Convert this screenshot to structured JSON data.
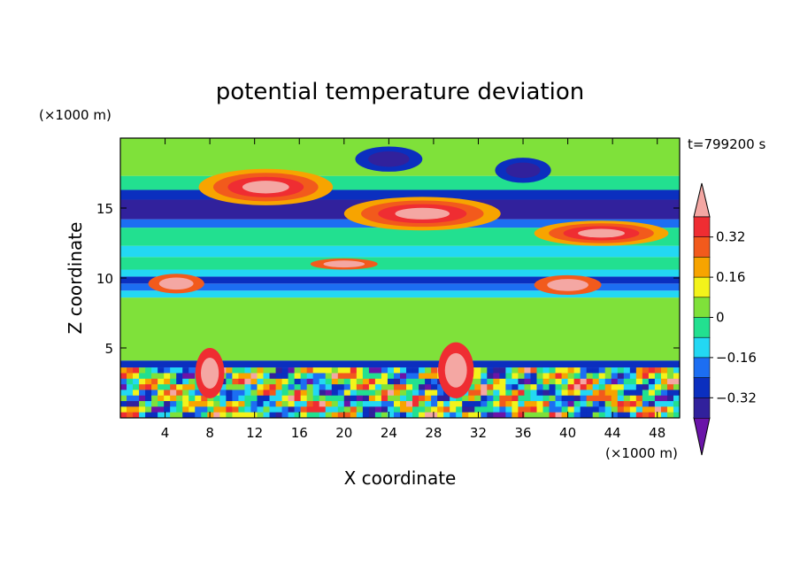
{
  "chart_data": {
    "type": "heatmap",
    "title": "potential temperature deviation",
    "xlabel": "X coordinate",
    "ylabel": "Z coordinate",
    "x_unit": "(×1000 m)",
    "y_unit": "(×1000 m)",
    "time_label": "t=799200 s",
    "xlim": [
      0,
      50
    ],
    "ylim": [
      0,
      20
    ],
    "xticks": [
      4,
      8,
      12,
      16,
      20,
      24,
      28,
      32,
      36,
      40,
      44,
      48
    ],
    "yticks": [
      5,
      10,
      15
    ],
    "colorbar": {
      "tick_labels": [
        "0.32",
        "0.16",
        "0",
        "−0.16",
        "−0.32"
      ],
      "tick_values": [
        0.32,
        0.16,
        0,
        -0.16,
        -0.32
      ],
      "levels": [
        -0.4,
        -0.32,
        -0.24,
        -0.16,
        -0.08,
        0,
        0.08,
        0.16,
        0.24,
        0.32,
        0.4
      ],
      "colors": [
        "#6a14a8",
        "#31219c",
        "#0b2fbf",
        "#1c6ef2",
        "#23d8f3",
        "#22e090",
        "#7fe13a",
        "#f3f31b",
        "#f7a400",
        "#f25a1c",
        "#ef2d32",
        "#f4a7a3"
      ],
      "extend": "both"
    },
    "bands": [
      {
        "z": [
          0,
          3.6
        ],
        "pattern": "turbulent",
        "levels": [
          0,
          1,
          2,
          3,
          4,
          5,
          6,
          7,
          8,
          9,
          10,
          11
        ]
      },
      {
        "z": [
          3.6,
          4.1
        ],
        "level": 2
      },
      {
        "z": [
          4.1,
          8.6
        ],
        "level": 6
      },
      {
        "z": [
          8.6,
          9.1
        ],
        "level": 4
      },
      {
        "z": [
          9.1,
          9.6
        ],
        "level": 3
      },
      {
        "z": [
          9.6,
          10.1
        ],
        "level": 2
      },
      {
        "z": [
          10.1,
          10.6
        ],
        "level": 4
      },
      {
        "z": [
          10.6,
          11.5
        ],
        "level": 5
      },
      {
        "z": [
          11.5,
          12.3
        ],
        "level": 4
      },
      {
        "z": [
          12.3,
          13.6
        ],
        "level": 5
      },
      {
        "z": [
          13.6,
          14.2
        ],
        "level": 3
      },
      {
        "z": [
          14.2,
          15.6
        ],
        "level": 1
      },
      {
        "z": [
          15.6,
          16.3
        ],
        "level": 2
      },
      {
        "z": [
          16.3,
          17.3
        ],
        "level": 5
      },
      {
        "z": [
          17.3,
          20
        ],
        "level": 6
      }
    ],
    "blobs": [
      {
        "x": 13,
        "z": 16.5,
        "rx": 6,
        "rz": 1.3,
        "levels": [
          8,
          9,
          10,
          11
        ]
      },
      {
        "x": 27,
        "z": 14.6,
        "rx": 7,
        "rz": 1.2,
        "levels": [
          8,
          9,
          10,
          11
        ]
      },
      {
        "x": 43,
        "z": 13.2,
        "rx": 6,
        "rz": 0.9,
        "levels": [
          8,
          9,
          10,
          11
        ]
      },
      {
        "x": 5,
        "z": 9.6,
        "rx": 2.5,
        "rz": 0.7,
        "levels": [
          9,
          11
        ]
      },
      {
        "x": 40,
        "z": 9.5,
        "rx": 3,
        "rz": 0.7,
        "levels": [
          9,
          11
        ]
      },
      {
        "x": 20,
        "z": 11.0,
        "rx": 3,
        "rz": 0.4,
        "levels": [
          9,
          11
        ]
      },
      {
        "x": 30,
        "z": 3.4,
        "rx": 1.6,
        "rz": 2.0,
        "levels": [
          10,
          11
        ]
      },
      {
        "x": 8,
        "z": 3.2,
        "rx": 1.3,
        "rz": 1.8,
        "levels": [
          10,
          11
        ]
      },
      {
        "x": 24,
        "z": 18.5,
        "rx": 3,
        "rz": 0.9,
        "levels": [
          2,
          1
        ]
      },
      {
        "x": 36,
        "z": 17.7,
        "rx": 2.5,
        "rz": 0.9,
        "levels": [
          2,
          1
        ]
      }
    ]
  }
}
